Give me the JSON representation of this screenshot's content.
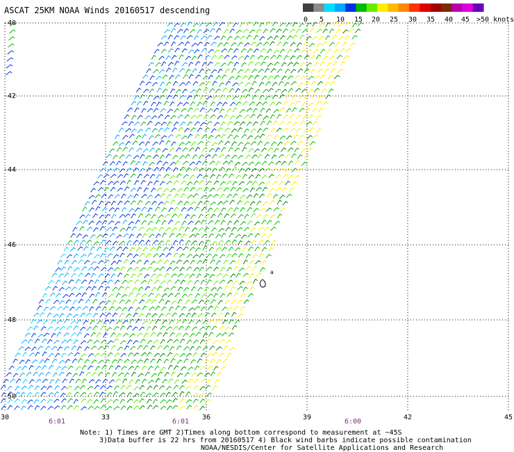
{
  "title": "ASCAT 25KM NOAA Winds 20160517 descending",
  "legend": {
    "labels": [
      "0",
      "5",
      "10",
      "15",
      "20",
      "25",
      "30",
      "35",
      "40",
      "45",
      ">50 knots"
    ],
    "colors": [
      "#3f3f3f",
      "#8c8c8c",
      "#00ddff",
      "#00aaff",
      "#0033dd",
      "#00bb00",
      "#66ee00",
      "#ffee00",
      "#ffbb00",
      "#ff8800",
      "#ff3300",
      "#dd0000",
      "#a40000",
      "#7a2a00",
      "#bb00aa",
      "#dd00dd",
      "#6600bb"
    ]
  },
  "grid": {
    "lat_labels": [
      "-40",
      "-42",
      "-44",
      "-46",
      "-48",
      "-50"
    ],
    "lon_labels": [
      "30",
      "33",
      "36",
      "39",
      "42",
      "45"
    ]
  },
  "times": [
    "6:01",
    "6:01",
    "6:00"
  ],
  "island_label": "a",
  "notes": [
    "Note: 1) Times are GMT 2)Times along bottom correspond to measurement at ~45S",
    "3)Data buffer is 22 hrs from 20160517 4) Black wind barbs indicate possible contamination",
    "NOAA/NESDIS/Center for Satellite Applications and Research"
  ]
}
